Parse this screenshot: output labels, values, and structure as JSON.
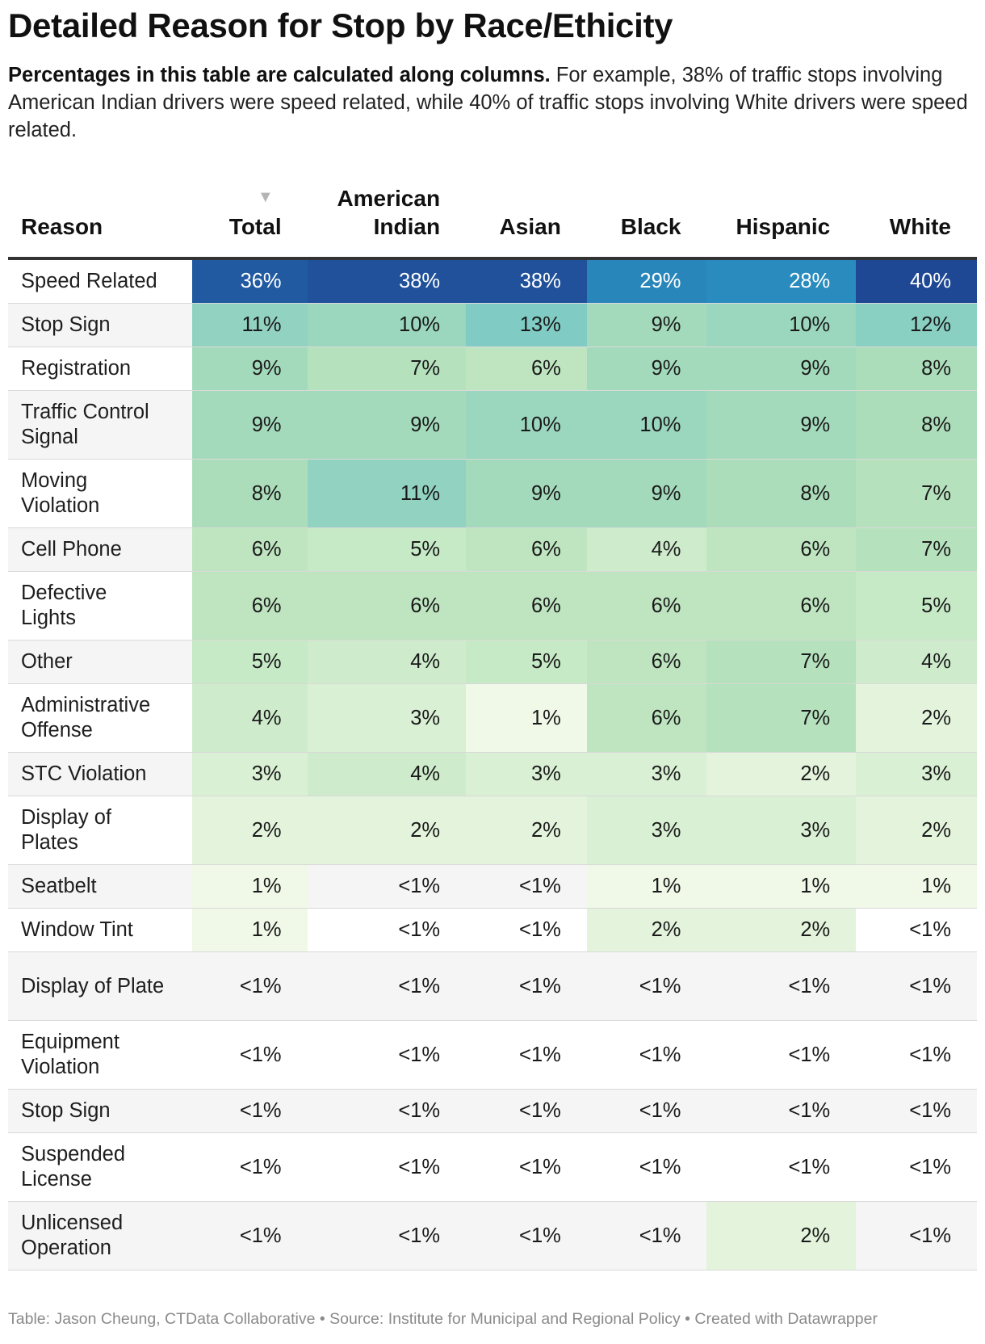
{
  "title": "Detailed Reason for Stop by Race/Ethicity",
  "description": {
    "bold": "Percentages in this table are calculated along columns.",
    "text": " For example, 38% of traffic stops involving American Indian drivers were speed related, while 40% of traffic stops involving White drivers were speed related."
  },
  "sort_indicator": "▼",
  "footer": "Table: Jason Cheung, CTData Collaborative • Source: Institute for Municipal and Regional Policy • Created with Datawrapper",
  "chart_data": {
    "type": "table",
    "title": "Detailed Reason for Stop by Race/Ethicity",
    "columns": [
      "Reason",
      "Total",
      "American Indian",
      "Asian",
      "Black",
      "Hispanic",
      "White"
    ],
    "sorted_by": "Total",
    "rows": [
      {
        "reason": "Speed Related",
        "cells": [
          "36%",
          "38%",
          "38%",
          "29%",
          "28%",
          "40%"
        ],
        "values": [
          36,
          38,
          38,
          29,
          28,
          40
        ]
      },
      {
        "reason": "Stop Sign",
        "cells": [
          "11%",
          "10%",
          "13%",
          "9%",
          "10%",
          "12%"
        ],
        "values": [
          11,
          10,
          13,
          9,
          10,
          12
        ]
      },
      {
        "reason": "Registration",
        "cells": [
          "9%",
          "7%",
          "6%",
          "9%",
          "9%",
          "8%"
        ],
        "values": [
          9,
          7,
          6,
          9,
          9,
          8
        ]
      },
      {
        "reason": "Traffic Control Signal",
        "cells": [
          "9%",
          "9%",
          "10%",
          "10%",
          "9%",
          "8%"
        ],
        "values": [
          9,
          9,
          10,
          10,
          9,
          8
        ]
      },
      {
        "reason": "Moving Violation",
        "cells": [
          "8%",
          "11%",
          "9%",
          "9%",
          "8%",
          "7%"
        ],
        "values": [
          8,
          11,
          9,
          9,
          8,
          7
        ]
      },
      {
        "reason": "Cell Phone",
        "cells": [
          "6%",
          "5%",
          "6%",
          "4%",
          "6%",
          "7%"
        ],
        "values": [
          6,
          5,
          6,
          4,
          6,
          7
        ]
      },
      {
        "reason": "Defective Lights",
        "cells": [
          "6%",
          "6%",
          "6%",
          "6%",
          "6%",
          "5%"
        ],
        "values": [
          6,
          6,
          6,
          6,
          6,
          5
        ]
      },
      {
        "reason": "Other",
        "cells": [
          "5%",
          "4%",
          "5%",
          "6%",
          "7%",
          "4%"
        ],
        "values": [
          5,
          4,
          5,
          6,
          7,
          4
        ]
      },
      {
        "reason": "Administrative Offense",
        "cells": [
          "4%",
          "3%",
          "1%",
          "6%",
          "7%",
          "2%"
        ],
        "values": [
          4,
          3,
          1,
          6,
          7,
          2
        ]
      },
      {
        "reason": "STC Violation",
        "cells": [
          "3%",
          "4%",
          "3%",
          "3%",
          "2%",
          "3%"
        ],
        "values": [
          3,
          4,
          3,
          3,
          2,
          3
        ]
      },
      {
        "reason": "Display of Plates",
        "cells": [
          "2%",
          "2%",
          "2%",
          "3%",
          "3%",
          "2%"
        ],
        "values": [
          2,
          2,
          2,
          3,
          3,
          2
        ]
      },
      {
        "reason": "Seatbelt",
        "cells": [
          "1%",
          "<1%",
          "<1%",
          "1%",
          "1%",
          "1%"
        ],
        "values": [
          1,
          0,
          0,
          1,
          1,
          1
        ]
      },
      {
        "reason": "Window Tint",
        "cells": [
          "1%",
          "<1%",
          "<1%",
          "2%",
          "2%",
          "<1%"
        ],
        "values": [
          1,
          0,
          0,
          2,
          2,
          0
        ]
      },
      {
        "reason": "Display of Plate",
        "cells": [
          "<1%",
          "<1%",
          "<1%",
          "<1%",
          "<1%",
          "<1%"
        ],
        "values": [
          0,
          0,
          0,
          0,
          0,
          0
        ]
      },
      {
        "reason": "Equipment Violation",
        "cells": [
          "<1%",
          "<1%",
          "<1%",
          "<1%",
          "<1%",
          "<1%"
        ],
        "values": [
          0,
          0,
          0,
          0,
          0,
          0
        ]
      },
      {
        "reason": "Stop Sign",
        "cells": [
          "<1%",
          "<1%",
          "<1%",
          "<1%",
          "<1%",
          "<1%"
        ],
        "values": [
          0,
          0,
          0,
          0,
          0,
          0
        ]
      },
      {
        "reason": "Suspended License",
        "cells": [
          "<1%",
          "<1%",
          "<1%",
          "<1%",
          "<1%",
          "<1%"
        ],
        "values": [
          0,
          0,
          0,
          0,
          0,
          0
        ]
      },
      {
        "reason": "Unlicensed Operation",
        "cells": [
          "<1%",
          "<1%",
          "<1%",
          "<1%",
          "2%",
          "<1%"
        ],
        "values": [
          0,
          0,
          0,
          0,
          2,
          0
        ]
      }
    ]
  }
}
